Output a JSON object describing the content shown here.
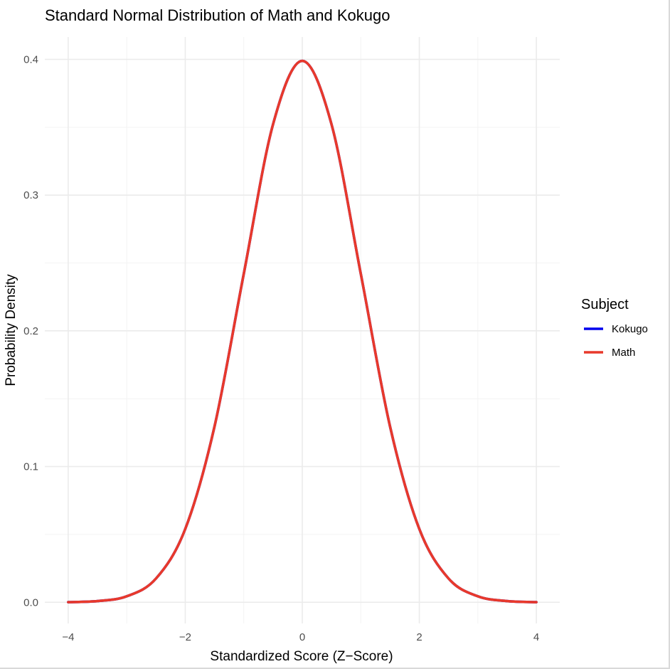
{
  "chart_data": {
    "type": "line",
    "title": "Standard Normal Distribution of Math and Kokugo",
    "xlabel": "Standardized Score (Z−Score)",
    "ylabel": "Probability Density",
    "xlim": [
      -4,
      4
    ],
    "ylim": [
      0,
      0.4
    ],
    "x_ticks": [
      -4,
      -2,
      0,
      2,
      4
    ],
    "x_tick_labels": [
      "−4",
      "−2",
      "0",
      "2",
      "4"
    ],
    "y_ticks": [
      0.0,
      0.1,
      0.2,
      0.3,
      0.4
    ],
    "y_tick_labels": [
      "0.0",
      "0.1",
      "0.2",
      "0.3",
      "0.4"
    ],
    "grid": true,
    "legend": {
      "title": "Subject",
      "position": "right",
      "entries": [
        {
          "name": "Kokugo",
          "color": "#0000ee"
        },
        {
          "name": "Math",
          "color": "#e8392b"
        }
      ]
    },
    "x": [
      -4.0,
      -3.5,
      -3.0,
      -2.5,
      -2.0,
      -1.5,
      -1.0,
      -0.5,
      0.0,
      0.5,
      1.0,
      1.5,
      2.0,
      2.5,
      3.0,
      3.5,
      4.0
    ],
    "series": [
      {
        "name": "Kokugo",
        "color": "#0000ee",
        "values": [
          0.0001,
          0.0009,
          0.0044,
          0.0175,
          0.054,
          0.1295,
          0.242,
          0.3521,
          0.3989,
          0.3521,
          0.242,
          0.1295,
          0.054,
          0.0175,
          0.0044,
          0.0009,
          0.0001
        ]
      },
      {
        "name": "Math",
        "color": "#e8392b",
        "values": [
          0.0001,
          0.0009,
          0.0044,
          0.0175,
          0.054,
          0.1295,
          0.242,
          0.3521,
          0.3989,
          0.3521,
          0.242,
          0.1295,
          0.054,
          0.0175,
          0.0044,
          0.0009,
          0.0001
        ]
      }
    ]
  }
}
